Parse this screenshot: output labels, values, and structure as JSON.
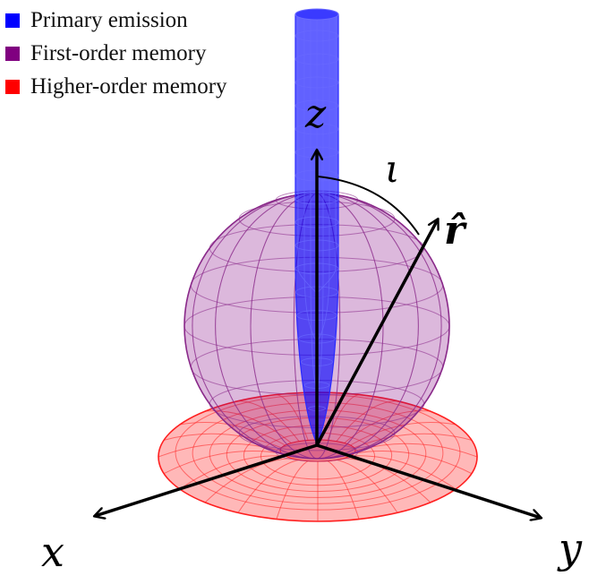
{
  "legend": [
    {
      "label": "Primary emission",
      "color": "#0000ff"
    },
    {
      "label": "First-order memory",
      "color": "#800080"
    },
    {
      "label": "Higher-order memory",
      "color": "#ff0000"
    }
  ],
  "labels": {
    "x_axis": "x",
    "y_axis": "y",
    "z_axis": "z",
    "angle": "ι",
    "direction": "r̂"
  },
  "colors": {
    "primary": "#0000ff",
    "first_order": "#800080",
    "higher_order": "#ff0000",
    "axes": "#000000"
  }
}
